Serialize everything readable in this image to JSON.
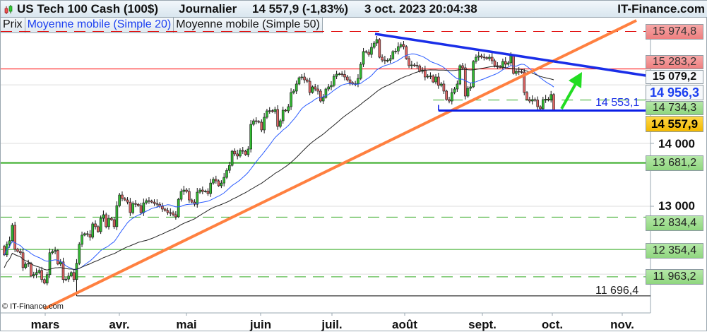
{
  "header": {
    "instrument": "US Tech 100 Cash (100$)",
    "period": "Journalier",
    "last": "14 557,9 (-1,83%)",
    "datetime": "3 oct. 2023 20:04:38",
    "brand": "IT-Finance.com"
  },
  "legend": {
    "price": "Prix",
    "ma20": "Moyenne mobile (Simple 20)",
    "ma50": "Moyenne mobile (Simple 50)"
  },
  "copyright": "© IT-Finance.com",
  "chart_data": {
    "type": "candlestick",
    "yscale": "log",
    "ylim": [
      11500,
      16300
    ],
    "y_ticks": [
      {
        "value": 14000,
        "label": "14 000"
      },
      {
        "value": 13000,
        "label": "13 000"
      }
    ],
    "gridlines": [
      12000,
      13000,
      14000,
      15000
    ],
    "x_ticks": [
      "mars",
      "avr.",
      "mai",
      "juin",
      "juil.",
      "août",
      "sept.",
      "oct.",
      "nov."
    ],
    "first_open": 12400,
    "closes": [
      12276,
      12430,
      12482,
      12712,
      12358,
      12327,
      12307,
      12093,
      12144,
      12154,
      11973,
      11993,
      12023,
      12053,
      11924,
      11874,
      11993,
      12307,
      12327,
      12340,
      12144,
      12174,
      11924,
      11930,
      11973,
      12023,
      11924,
      12154,
      12430,
      12565,
      12586,
      12576,
      12534,
      12733,
      12691,
      12617,
      12817,
      12871,
      12691,
      12817,
      12796,
      12691,
      13010,
      13174,
      13120,
      13097,
      13064,
      12903,
      13042,
      13030,
      13010,
      12903,
      13053,
      13086,
      13080,
      13064,
      13042,
      13031,
      13000,
      12957,
      12935,
      12903,
      12900,
      12871,
      12839,
      13108,
      13229,
      13251,
      13229,
      13097,
      13064,
      13031,
      13218,
      13251,
      13229,
      13235,
      13196,
      13361,
      13420,
      13395,
      13318,
      13361,
      13451,
      13562,
      13642,
      13872,
      13827,
      13793,
      13884,
      13872,
      13815,
      13907,
      14318,
      14378,
      14366,
      14354,
      14224,
      14438,
      14547,
      14550,
      14535,
      14571,
      14283,
      14378,
      14559,
      14547,
      14619,
      14865,
      14890,
      15015,
      15127,
      15140,
      15089,
      15064,
      14865,
      14965,
      14927,
      14890,
      14717,
      14778,
      14927,
      14965,
      14990,
      15152,
      15190,
      15195,
      15185,
      15140,
      15089,
      15039,
      15015,
      15020,
      15114,
      15369,
      15601,
      15588,
      15548,
      15679,
      15757,
      15823,
      15497,
      15445,
      15432,
      15440,
      15471,
      15601,
      15610,
      15692,
      15731,
      15692,
      15471,
      15343,
      15356,
      15350,
      15340,
      15241,
      15266,
      15140,
      15152,
      15160,
      15051,
      15140,
      14990,
      15015,
      14890,
      14742,
      14717,
      14865,
      14927,
      15015,
      15343,
      15305,
      14803,
      14940,
      14965,
      15420,
      15497,
      15522,
      15500,
      15490,
      15471,
      15497,
      15432,
      15343,
      15330,
      15318,
      15420,
      15369,
      15394,
      15522,
      15203,
      15241,
      15235,
      15228,
      14865,
      14742,
      14717,
      14742,
      14735,
      14619,
      14583,
      14742,
      14750,
      14740,
      14830,
      14557.9
    ],
    "moving_averages": [
      {
        "name": "Moyenne mobile (Simple 20)",
        "period": 20,
        "color": "#2b5cff"
      },
      {
        "name": "Moyenne mobile (Simple 50)",
        "period": 50,
        "color": "#222222"
      }
    ],
    "levels": [
      {
        "value": 15974.8,
        "label": "15 974,8",
        "style": "dashed",
        "color": "#e00000",
        "box": "red"
      },
      {
        "value": 15283.2,
        "label": "15 283,2",
        "style": "solid",
        "color": "#ff0000",
        "box": "red"
      },
      {
        "value": 14734.3,
        "label": "14 734,3",
        "style": "dashed",
        "color": "#33aa22",
        "box": "green",
        "from_index": 160
      },
      {
        "value": 13681.2,
        "label": "13 681,2",
        "style": "solid-thick",
        "color": "#33aa22",
        "box": "green"
      },
      {
        "value": 12834.4,
        "label": "12 834,4",
        "style": "dashed",
        "color": "#33aa22",
        "box": "green"
      },
      {
        "value": 12354.4,
        "label": "12 354,4",
        "style": "solid",
        "color": "#33aa22",
        "box": "green"
      },
      {
        "value": 11963.2,
        "label": "11 963,2",
        "style": "dashed",
        "color": "#33aa22",
        "box": "green"
      }
    ],
    "support": {
      "value": 14553.1,
      "label": "14 553,1",
      "color": "#0a1ee6"
    },
    "low_line": {
      "value": 11696.4,
      "label": "11 696,4",
      "color": "#000000"
    },
    "axis_badges": {
      "ma50": "15 079,2",
      "ma20": "14 956,3",
      "last": "14 557,9"
    },
    "trendlines": [
      {
        "name": "uptrend",
        "color": "#ff8040",
        "from": [
          11500,
          0
        ],
        "to": [
          16300,
          1
        ]
      },
      {
        "name": "downtrend",
        "color": "#1a2ee8"
      }
    ],
    "arrow": {
      "color": "#22dd22",
      "direction": "up"
    },
    "colors": {
      "up": "#33bb33",
      "down": "#e06666"
    }
  }
}
